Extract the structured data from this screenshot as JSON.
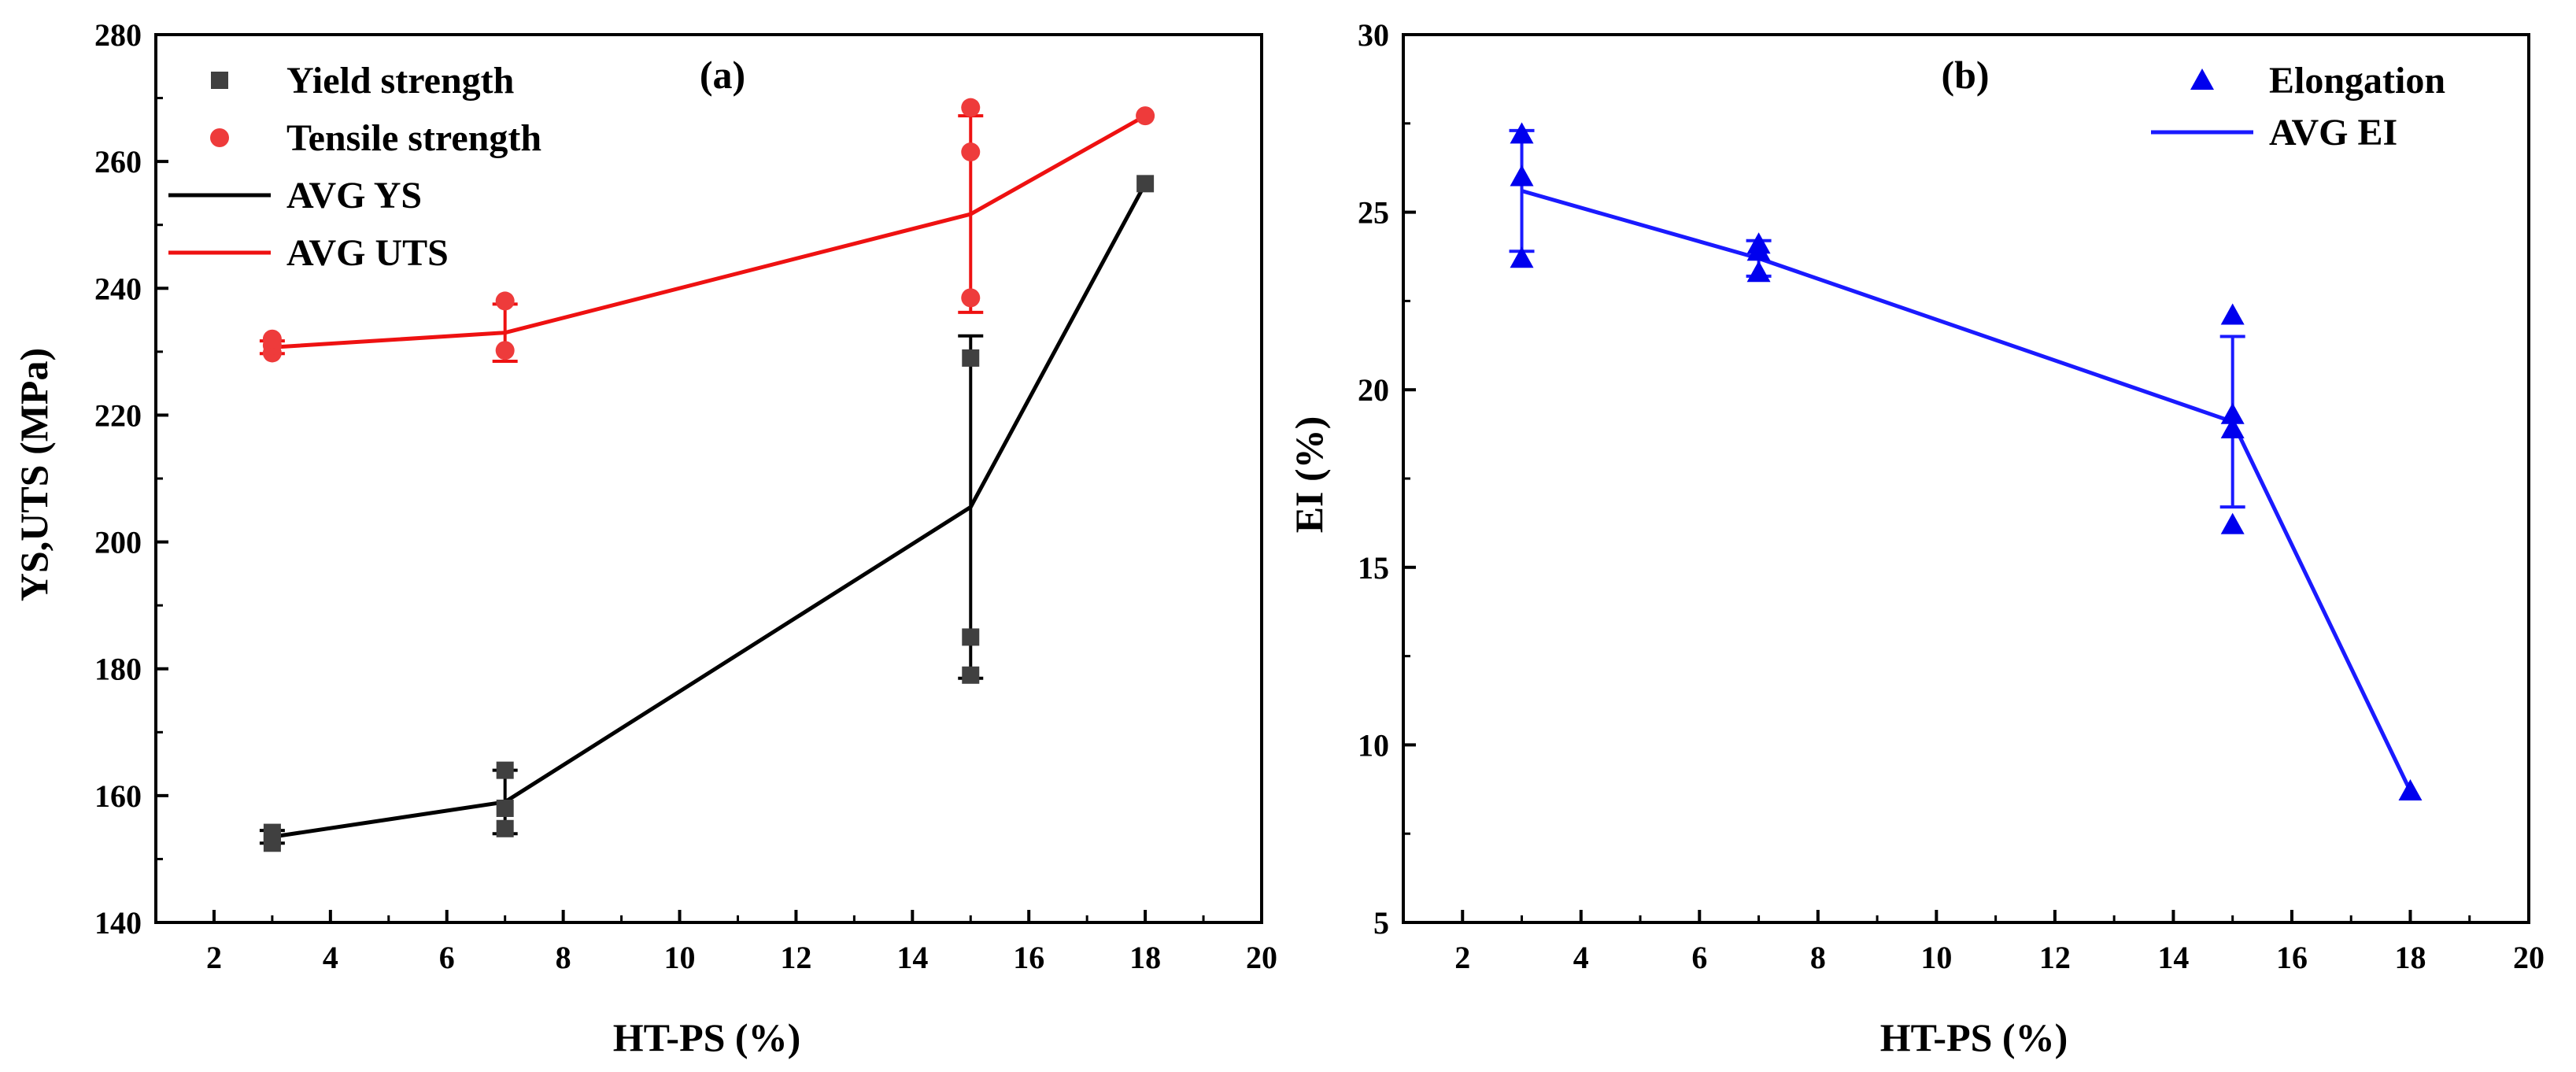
{
  "chart_data": [
    {
      "panel": "(a)",
      "type": "line-scatter",
      "xlabel": "HT-PS (%)",
      "ylabel": "YS,UTS (MPa)",
      "xlim": [
        1,
        20
      ],
      "ylim": [
        140,
        280
      ],
      "xticks": [
        2,
        4,
        6,
        8,
        10,
        12,
        14,
        16,
        18,
        20
      ],
      "yticks": [
        140,
        160,
        180,
        200,
        220,
        240,
        260,
        280
      ],
      "legend_position": "top-left",
      "legend": [
        {
          "label": "Yield strength",
          "kind": "square",
          "color": "#404040"
        },
        {
          "label": "Tensile strength",
          "kind": "circle",
          "color": "#ee3b3b"
        },
        {
          "label": "AVG YS",
          "kind": "line",
          "color": "#000000"
        },
        {
          "label": "AVG UTS",
          "kind": "line",
          "color": "#ee1111"
        }
      ],
      "scatter": [
        {
          "name": "Yield strength",
          "marker": "square",
          "color": "#404040",
          "points": [
            [
              3,
              152.5
            ],
            [
              3,
              153.5
            ],
            [
              3,
              154.2
            ],
            [
              7,
              154.8
            ],
            [
              7,
              158.0
            ],
            [
              7,
              164.0
            ],
            [
              15,
              179.0
            ],
            [
              15,
              185.0
            ],
            [
              15,
              229.0
            ],
            [
              18,
              256.5
            ]
          ]
        },
        {
          "name": "Tensile strength",
          "marker": "circle",
          "color": "#ee3b3b",
          "points": [
            [
              3,
              229.8
            ],
            [
              3,
              231.0
            ],
            [
              3,
              232.0
            ],
            [
              7,
              230.2
            ],
            [
              7,
              238.0
            ],
            [
              15,
              238.5
            ],
            [
              15,
              261.5
            ],
            [
              15,
              268.5
            ],
            [
              18,
              267.2
            ]
          ]
        }
      ],
      "series": [
        {
          "name": "AVG YS",
          "color": "#000000",
          "x": [
            3,
            7,
            15,
            18
          ],
          "y": [
            153.5,
            159.0,
            205.5,
            256.5
          ],
          "error": [
            1.0,
            5.0,
            27.0,
            0
          ]
        },
        {
          "name": "AVG UTS",
          "color": "#ee1111",
          "x": [
            3,
            7,
            15,
            18
          ],
          "y": [
            230.7,
            233.0,
            251.7,
            267.2
          ],
          "error": [
            1.0,
            4.5,
            15.5,
            0
          ]
        }
      ]
    },
    {
      "panel": "(b)",
      "type": "line-scatter",
      "xlabel": "HT-PS (%)",
      "ylabel": "EI (%)",
      "xlim": [
        1,
        20
      ],
      "ylim": [
        5,
        30
      ],
      "xticks": [
        2,
        4,
        6,
        8,
        10,
        12,
        14,
        16,
        18,
        20
      ],
      "yticks": [
        5,
        10,
        15,
        20,
        25,
        30
      ],
      "legend_position": "top-right",
      "legend": [
        {
          "label": "Elongation",
          "kind": "triangle",
          "color": "#0000ee"
        },
        {
          "label": "AVG EI",
          "kind": "line",
          "color": "#1a1aff"
        }
      ],
      "scatter": [
        {
          "name": "Elongation",
          "marker": "triangle",
          "color": "#0000ee",
          "points": [
            [
              3,
              23.7
            ],
            [
              3,
              26.0
            ],
            [
              3,
              27.2
            ],
            [
              7,
              23.3
            ],
            [
              7,
              23.9
            ],
            [
              7,
              24.1
            ],
            [
              15,
              16.2
            ],
            [
              15,
              18.9
            ],
            [
              15,
              19.3
            ],
            [
              15,
              22.1
            ],
            [
              18,
              8.7
            ]
          ]
        }
      ],
      "series": [
        {
          "name": "AVG EI",
          "color": "#1a1aff",
          "x": [
            3,
            7,
            15,
            18
          ],
          "y": [
            25.6,
            23.7,
            19.1,
            8.7
          ],
          "error": [
            1.7,
            0.5,
            2.4,
            0
          ]
        }
      ]
    }
  ]
}
